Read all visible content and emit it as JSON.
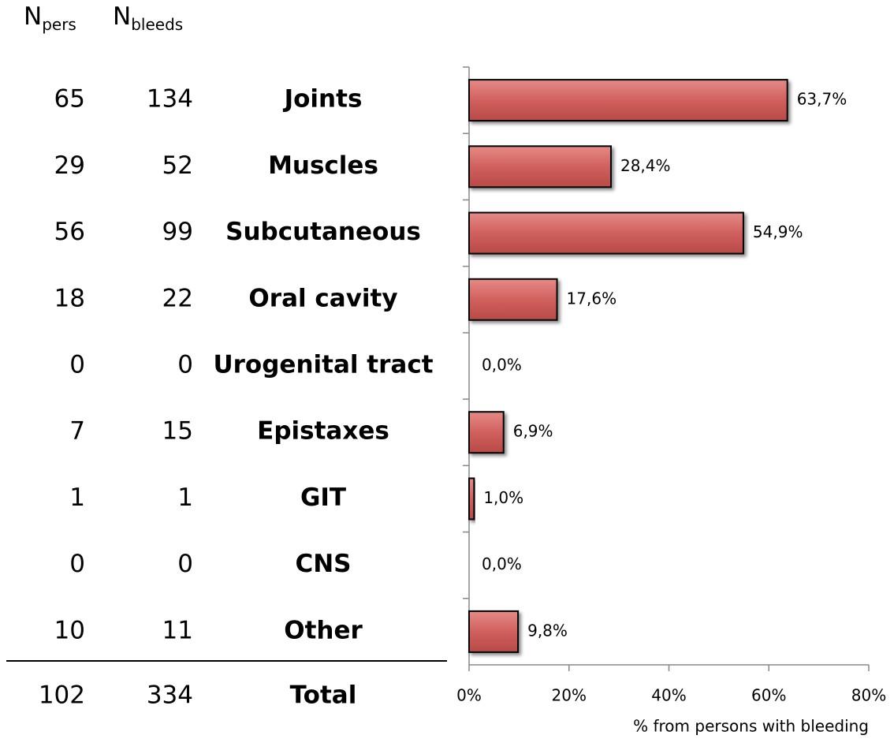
{
  "table": {
    "headers": [
      {
        "main": "N",
        "sub": "pers"
      },
      {
        "main": "N",
        "sub": "bleeds"
      }
    ],
    "n_pers": [
      65,
      29,
      56,
      18,
      0,
      7,
      1,
      0,
      10
    ],
    "n_bleeds": [
      134,
      52,
      99,
      22,
      0,
      15,
      1,
      0,
      11
    ],
    "total": {
      "n_pers": 102,
      "n_bleeds": 334,
      "label": "Total"
    }
  },
  "chart_data": {
    "type": "bar",
    "orientation": "horizontal",
    "categories": [
      "Joints",
      "Muscles",
      "Subcutaneous",
      "Oral cavity",
      "Urogenital tract",
      "Epistaxes",
      "GIT",
      "CNS",
      "Other"
    ],
    "values": [
      63.7,
      28.4,
      54.9,
      17.6,
      0.0,
      6.9,
      1.0,
      0.0,
      9.8
    ],
    "value_labels": [
      "63,7%",
      "28,4%",
      "54,9%",
      "17,6%",
      "0,0%",
      "6,9%",
      "1,0%",
      "0,0%",
      "9,8%"
    ],
    "color": "#d0605d",
    "xlim": [
      0,
      80
    ],
    "xticks": [
      {
        "value": 0,
        "label": "0%"
      },
      {
        "value": 20,
        "label": "20%"
      },
      {
        "value": 40,
        "label": "40%"
      },
      {
        "value": 60,
        "label": "60%"
      },
      {
        "value": 80,
        "label": "80%"
      }
    ],
    "xlabel": "% from persons with bleeding"
  }
}
